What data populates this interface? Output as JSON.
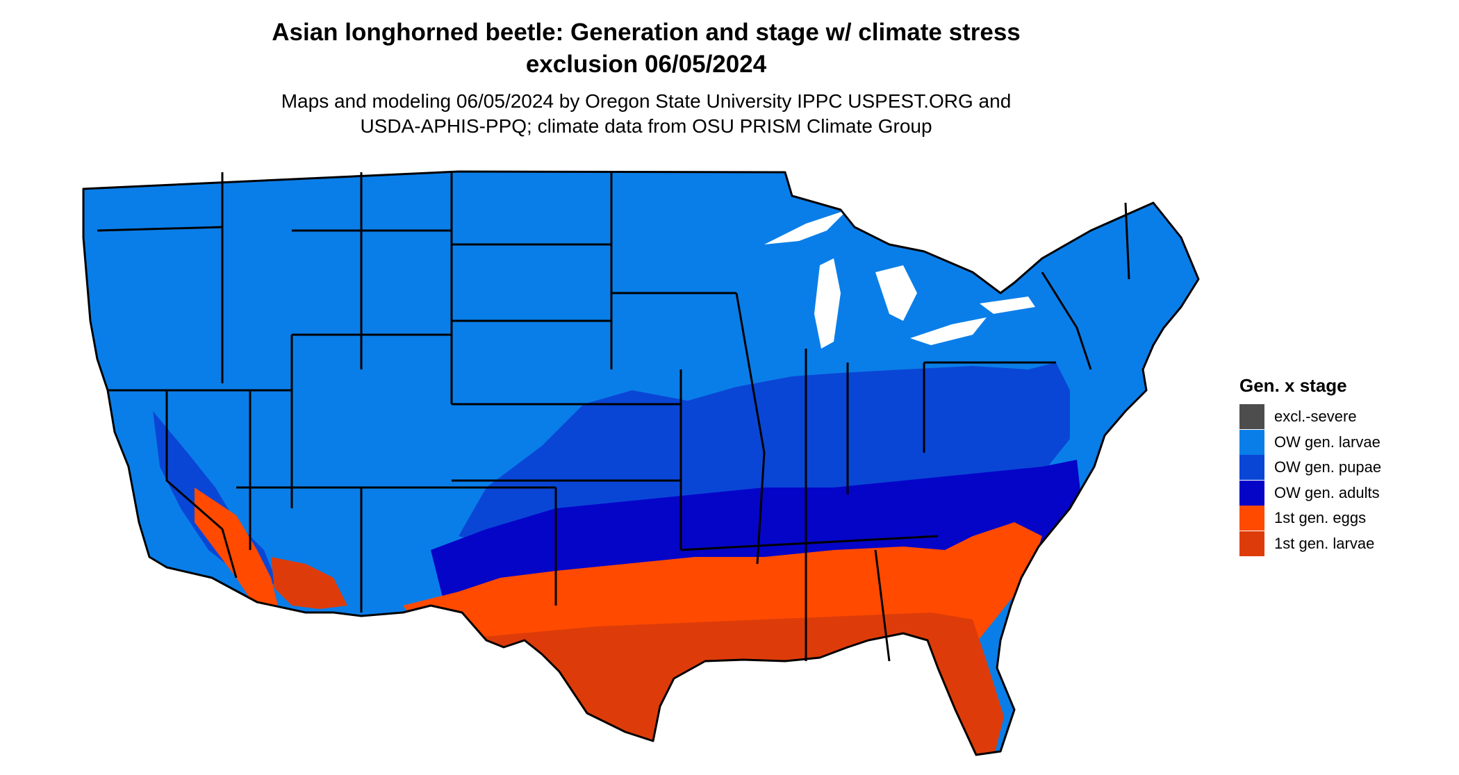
{
  "title_line1": "Asian longhorned beetle: Generation and stage w/ climate stress",
  "title_line2": "exclusion 06/05/2024",
  "subtitle_line1": "Maps and modeling 06/05/2024 by Oregon State University IPPC USPEST.ORG and",
  "subtitle_line2": "USDA-APHIS-PPQ; climate data from OSU PRISM Climate Group",
  "legend": {
    "title": "Gen. x stage",
    "items": [
      {
        "label": "excl.-severe",
        "color": "#4d4d4d"
      },
      {
        "label": "OW gen. larvae",
        "color": "#0a7ee8"
      },
      {
        "label": "OW gen. pupae",
        "color": "#0a46d6"
      },
      {
        "label": "OW gen. adults",
        "color": "#0505c8"
      },
      {
        "label": "1st gen. eggs",
        "color": "#ff4a00"
      },
      {
        "label": "1st gen. larvae",
        "color": "#dd3c0a"
      }
    ]
  },
  "colors": {
    "ow_larvae": "#0a7ee8",
    "ow_pupae": "#0a46d6",
    "ow_adults": "#0505c8",
    "gen1_eggs": "#ff4a00",
    "gen1_larvae": "#dd3c0a",
    "border": "#000000"
  }
}
